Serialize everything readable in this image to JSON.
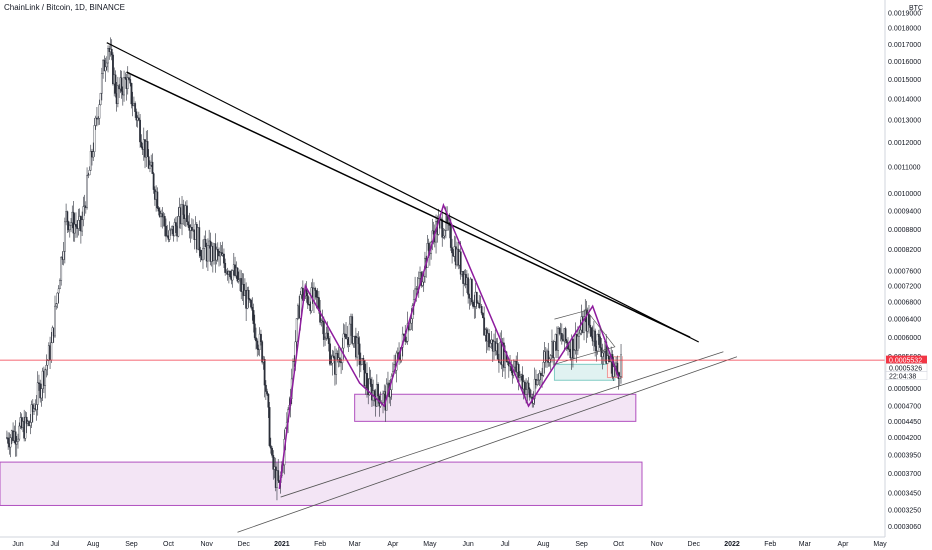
{
  "header": {
    "title": "ChainLink / Bitcoin, 1D, BINANCE"
  },
  "price_axis": {
    "unit": "BTC",
    "ticks": [
      "0.0019000",
      "0.0018000",
      "0.0017000",
      "0.0016000",
      "0.0015000",
      "0.0014000",
      "0.0013000",
      "0.0012000",
      "0.0011000",
      "0.0010000",
      "0.0009400",
      "0.0008800",
      "0.0008200",
      "0.0007600",
      "0.0007200",
      "0.0006800",
      "0.0006400",
      "0.0006000",
      "0.0005600",
      "0.0005000",
      "0.0004700",
      "0.0004450",
      "0.0004200",
      "0.0003950",
      "0.0003700",
      "0.0003450",
      "0.0003250",
      "0.0003060"
    ],
    "tags": {
      "last_price": "0.0005532",
      "secondary_price": "0.0005326",
      "countdown": "22:04:38"
    }
  },
  "time_axis": {
    "labels": [
      "Jun",
      "Jul",
      "Aug",
      "Sep",
      "Oct",
      "Nov",
      "Dec",
      "2021",
      "Feb",
      "Mar",
      "Apr",
      "May",
      "Jun",
      "Jul",
      "Aug",
      "Sep",
      "Oct",
      "Nov",
      "Dec",
      "2022",
      "Feb",
      "Mar",
      "Apr",
      "May"
    ]
  },
  "colors": {
    "candle": "#2a2e39",
    "price_line": "#f23645",
    "pattern": "#8e1c9e",
    "zone_fill": "#f3e5f5",
    "zone_border": "#b04fbf",
    "trendline": "#000000",
    "box_blue": "#80cbc4",
    "box_red": "#ef9a9a"
  },
  "chart_data": {
    "type": "candlestick",
    "title": "ChainLink / Bitcoin, 1D, BINANCE",
    "y_scale": "log",
    "y_unit": "BTC",
    "ylim": [
      0.000295,
      0.00199
    ],
    "last_price": 0.0005532,
    "close_path": [
      {
        "t": "2020-05-23",
        "v": 0.00042
      },
      {
        "t": "2020-06-10",
        "v": 0.00044
      },
      {
        "t": "2020-06-28",
        "v": 0.00058
      },
      {
        "t": "2020-07-10",
        "v": 0.00092
      },
      {
        "t": "2020-07-22",
        "v": 0.00088
      },
      {
        "t": "2020-07-31",
        "v": 0.00115
      },
      {
        "t": "2020-08-09",
        "v": 0.00155
      },
      {
        "t": "2020-08-13",
        "v": 0.0017
      },
      {
        "t": "2020-08-20",
        "v": 0.00142
      },
      {
        "t": "2020-08-28",
        "v": 0.0015
      },
      {
        "t": "2020-09-07",
        "v": 0.00128
      },
      {
        "t": "2020-09-20",
        "v": 0.00102
      },
      {
        "t": "2020-10-01",
        "v": 0.00085
      },
      {
        "t": "2020-10-15",
        "v": 0.00095
      },
      {
        "t": "2020-10-28",
        "v": 0.00082
      },
      {
        "t": "2020-11-10",
        "v": 0.0008
      },
      {
        "t": "2020-11-22",
        "v": 0.00076
      },
      {
        "t": "2020-12-03",
        "v": 0.00069
      },
      {
        "t": "2020-12-17",
        "v": 0.00056
      },
      {
        "t": "2020-12-24",
        "v": 0.00038
      },
      {
        "t": "2020-12-30",
        "v": 0.00035
      },
      {
        "t": "2021-01-07",
        "v": 0.00048
      },
      {
        "t": "2021-01-16",
        "v": 0.0007
      },
      {
        "t": "2021-01-30",
        "v": 0.00068
      },
      {
        "t": "2021-02-12",
        "v": 0.00054
      },
      {
        "t": "2021-02-26",
        "v": 0.00062
      },
      {
        "t": "2021-03-12",
        "v": 0.0005
      },
      {
        "t": "2021-03-26",
        "v": 0.00048
      },
      {
        "t": "2021-04-08",
        "v": 0.00058
      },
      {
        "t": "2021-04-24",
        "v": 0.00075
      },
      {
        "t": "2021-05-05",
        "v": 0.00088
      },
      {
        "t": "2021-05-13",
        "v": 0.0009
      },
      {
        "t": "2021-05-21",
        "v": 0.00082
      },
      {
        "t": "2021-06-04",
        "v": 0.0007
      },
      {
        "t": "2021-06-18",
        "v": 0.00059
      },
      {
        "t": "2021-07-02",
        "v": 0.00056
      },
      {
        "t": "2021-07-14",
        "v": 0.00052
      },
      {
        "t": "2021-07-23",
        "v": 0.00048
      },
      {
        "t": "2021-08-02",
        "v": 0.00056
      },
      {
        "t": "2021-08-14",
        "v": 0.0006
      },
      {
        "t": "2021-08-25",
        "v": 0.00058
      },
      {
        "t": "2021-09-04",
        "v": 0.00064
      },
      {
        "t": "2021-09-12",
        "v": 0.0006
      },
      {
        "t": "2021-09-22",
        "v": 0.00056
      },
      {
        "t": "2021-09-30",
        "v": 0.00053
      },
      {
        "t": "2021-10-03",
        "v": 0.000553
      }
    ]
  }
}
